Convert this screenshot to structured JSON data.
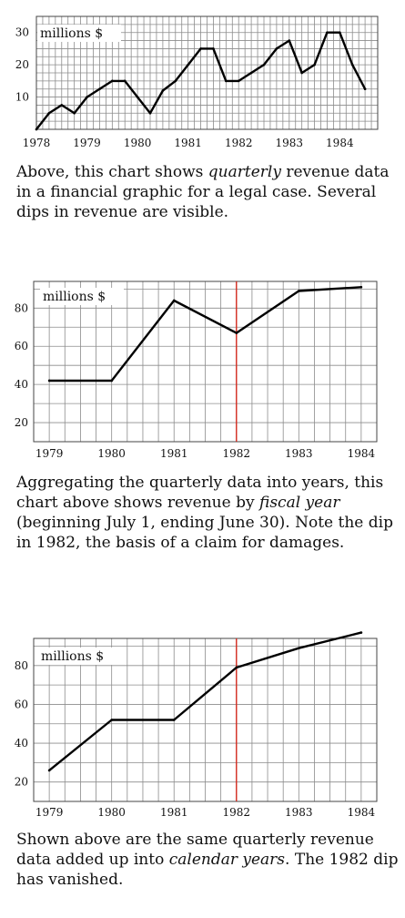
{
  "chart_data": [
    {
      "type": "line",
      "units_label": "millions $",
      "x_ticks": [
        "1978",
        "1979",
        "1980",
        "1981",
        "1982",
        "1983",
        "1984"
      ],
      "y_ticks": [
        "10",
        "20",
        "30"
      ],
      "xlim": [
        1978,
        1984.75
      ],
      "ylim": [
        0,
        35
      ],
      "grid": true,
      "series": [
        {
          "x": [
            1978.0,
            1978.25,
            1978.5,
            1978.75,
            1979.0,
            1979.25,
            1979.5,
            1979.75,
            1980.0,
            1980.25,
            1980.5,
            1980.75,
            1981.0,
            1981.25,
            1981.5,
            1981.75,
            1982.0,
            1982.25,
            1982.5,
            1982.75,
            1983.0,
            1983.25,
            1983.5,
            1983.75,
            1984.0,
            1984.25,
            1984.5
          ],
          "y": [
            0,
            5,
            7.5,
            5,
            10,
            12.5,
            15,
            15,
            10,
            5,
            12,
            15,
            20,
            25,
            25,
            15,
            15,
            17.5,
            20,
            25,
            27.5,
            17.5,
            20,
            30,
            30,
            20,
            12.5
          ]
        }
      ],
      "caption_parts": [
        {
          "text": "Above, this chart shows ",
          "italic": false
        },
        {
          "text": "quarterly",
          "italic": true
        },
        {
          "text": " revenue data in a financial graphic for a legal case. Several dips in revenue are visible.",
          "italic": false
        }
      ]
    },
    {
      "type": "line",
      "units_label": "millions $",
      "x_ticks": [
        "1979",
        "1980",
        "1981",
        "1982",
        "1983",
        "1984"
      ],
      "y_ticks": [
        "20",
        "40",
        "60",
        "80"
      ],
      "xlim": [
        1978.75,
        1984.25
      ],
      "ylim": [
        10,
        94
      ],
      "grid": true,
      "marker_x": 1982,
      "marker_color": "#d42a1e",
      "series": [
        {
          "x": [
            1979,
            1980,
            1981,
            1982,
            1983,
            1984
          ],
          "y": [
            42,
            42,
            84,
            67,
            89,
            91
          ]
        }
      ],
      "caption_parts": [
        {
          "text": "Aggregating the quarterly data into years, this chart above shows revenue by ",
          "italic": false
        },
        {
          "text": "fiscal year",
          "italic": true
        },
        {
          "text": " (beginning July 1, ending June 30). Note the dip in 1982, the basis of a claim for damages.",
          "italic": false
        }
      ]
    },
    {
      "type": "line",
      "units_label": "millions $",
      "x_ticks": [
        "1979",
        "1980",
        "1981",
        "1982",
        "1983",
        "1984"
      ],
      "y_ticks": [
        "20",
        "40",
        "60",
        "80"
      ],
      "xlim": [
        1978.75,
        1984.25
      ],
      "ylim": [
        10,
        94
      ],
      "grid": true,
      "marker_x": 1982,
      "marker_color": "#d42a1e",
      "series": [
        {
          "x": [
            1979,
            1980,
            1981,
            1982,
            1983,
            1984
          ],
          "y": [
            26,
            52,
            52,
            79,
            89,
            97
          ]
        }
      ],
      "caption_parts": [
        {
          "text": "Shown above are the same quarterly revenue data added up into ",
          "italic": false
        },
        {
          "text": "calendar years",
          "italic": true
        },
        {
          "text": ". The 1982 dip has vanished.",
          "italic": false
        }
      ]
    }
  ]
}
